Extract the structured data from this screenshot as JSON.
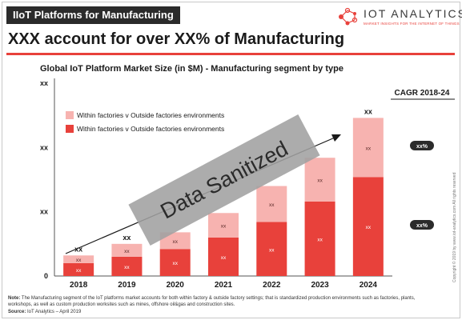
{
  "header": {
    "badge": "IIoT Platforms for Manufacturing",
    "headline": "XXX account for over XX% of Manufacturing"
  },
  "logo": {
    "name": "IOT ANALYTICS",
    "tagline": "MARKET INSIGHTS FOR THE INTERNET OF THINGS"
  },
  "side_text": "Copyright © 2019 by www.iot-analytics.com All rights reserved",
  "stamp_text": "Data Sanitized",
  "note": {
    "label": "Note:",
    "text": "The Manufacturing segment of the IoT platforms market accounts for both within factory & outside factory settings; that is standardized production environments such as factories, plants, workshops, as well as custom production worksites such as mines, offshore oil&gas and construction sites."
  },
  "source": {
    "label": "Source:",
    "text": "IoT Analytics – April 2019"
  },
  "colors": {
    "dark_red": "#e8413b",
    "light_red": "#f7b3b0",
    "accent": "#e8413b",
    "badge_bg": "#2b2b2b"
  },
  "chart_data": {
    "type": "bar",
    "stacked": true,
    "title": "Global IoT Platform Market Size (in $M) - Manufacturing segment by type",
    "categories": [
      "2018",
      "2019",
      "2020",
      "2021",
      "2022",
      "2023",
      "2024"
    ],
    "series": [
      {
        "name": "Within factories v Outside factories environments",
        "values": [
          1.0,
          1.5,
          2.1,
          3.0,
          4.2,
          5.8,
          7.7
        ],
        "color": "#e8413b"
      },
      {
        "name": "Within factories v Outside factories environments",
        "values": [
          0.6,
          1.0,
          1.3,
          1.9,
          2.8,
          3.4,
          4.6
        ],
        "color": "#f7b3b0"
      }
    ],
    "segment_labels": "xx",
    "total_labels": [
      "xx",
      "xx",
      "",
      "",
      "",
      "",
      "xx"
    ],
    "y_tick_labels": [
      "0",
      "xx",
      "xx",
      "xx"
    ],
    "y_ticks": [
      0,
      5,
      10,
      15
    ],
    "ylim": [
      0,
      15
    ],
    "cagr": {
      "title": "CAGR 2018-24",
      "values": [
        "xx%",
        "xx%"
      ]
    },
    "legend_position": "top-left",
    "trend_arrow": true
  }
}
